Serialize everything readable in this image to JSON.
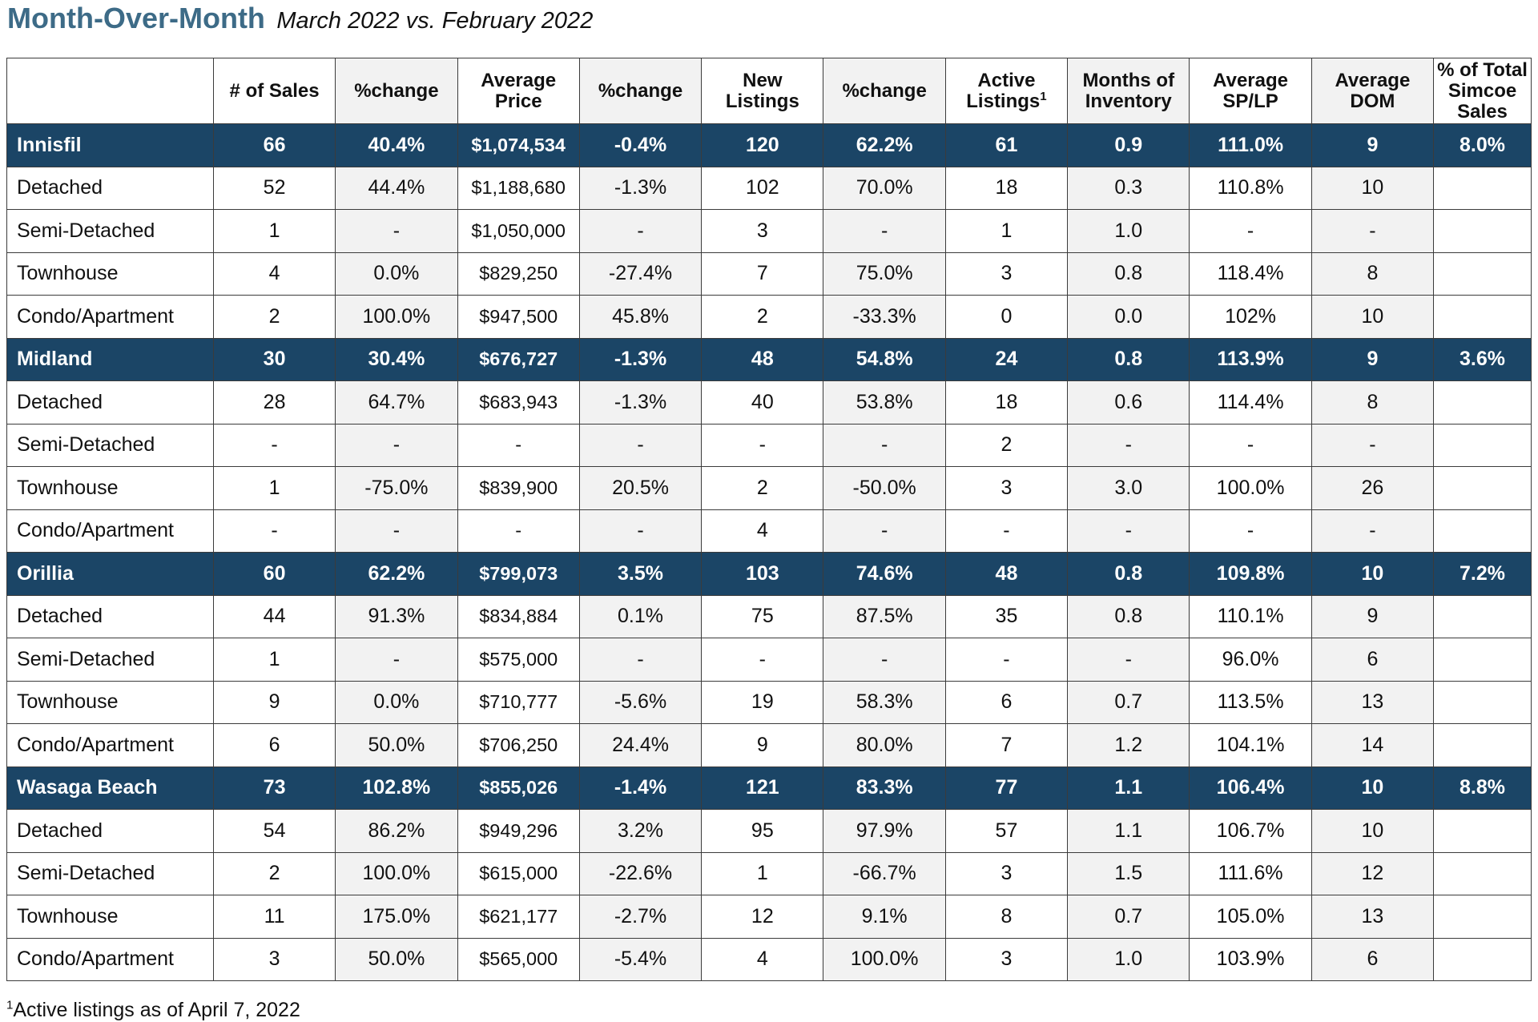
{
  "title": {
    "main": "Month-Over-Month",
    "subtitle": "March 2022 vs. February 2022"
  },
  "colors": {
    "title": "#3d6b87",
    "area_row_bg": "#1b4566",
    "area_row_text": "#ffffff",
    "shaded_column": "#f2f2f2",
    "border": "#3b3b3b"
  },
  "columns": {
    "sales": "# of Sales",
    "sales_change": "%change",
    "avg_price": "Average Price",
    "price_change": "%change",
    "new_listings": "New Listings",
    "new_change": "%change",
    "active_listings": "Active Listings",
    "active_sup": "1",
    "months_inventory": "Months of Inventory",
    "sp_lp": "Average SP/LP",
    "dom": "Average DOM",
    "pct_total": "% of Total Simcoe Sales"
  },
  "rows": [
    {
      "type": "area",
      "label": "Innisfil",
      "cells": [
        "66",
        "40.4%",
        "$1,074,534",
        "-0.4%",
        "120",
        "62.2%",
        "61",
        "0.9",
        "111.0%",
        "9",
        "8.0%"
      ]
    },
    {
      "type": "sub",
      "label": "Detached",
      "cells": [
        "52",
        "44.4%",
        "$1,188,680",
        "-1.3%",
        "102",
        "70.0%",
        "18",
        "0.3",
        "110.8%",
        "10",
        ""
      ]
    },
    {
      "type": "sub",
      "label": "Semi-Detached",
      "cells": [
        "1",
        "-",
        "$1,050,000",
        "-",
        "3",
        "-",
        "1",
        "1.0",
        "-",
        "-",
        ""
      ]
    },
    {
      "type": "sub",
      "label": "Townhouse",
      "cells": [
        "4",
        "0.0%",
        "$829,250",
        "-27.4%",
        "7",
        "75.0%",
        "3",
        "0.8",
        "118.4%",
        "8",
        ""
      ]
    },
    {
      "type": "sub",
      "label": "Condo/Apartment",
      "cells": [
        "2",
        "100.0%",
        "$947,500",
        "45.8%",
        "2",
        "-33.3%",
        "0",
        "0.0",
        "102%",
        "10",
        ""
      ]
    },
    {
      "type": "area",
      "label": "Midland",
      "cells": [
        "30",
        "30.4%",
        "$676,727",
        "-1.3%",
        "48",
        "54.8%",
        "24",
        "0.8",
        "113.9%",
        "9",
        "3.6%"
      ]
    },
    {
      "type": "sub",
      "label": "Detached",
      "cells": [
        "28",
        "64.7%",
        "$683,943",
        "-1.3%",
        "40",
        "53.8%",
        "18",
        "0.6",
        "114.4%",
        "8",
        ""
      ]
    },
    {
      "type": "sub",
      "label": "Semi-Detached",
      "cells": [
        "-",
        "-",
        "-",
        "-",
        "-",
        "-",
        "2",
        "-",
        "-",
        "-",
        ""
      ]
    },
    {
      "type": "sub",
      "label": "Townhouse",
      "cells": [
        "1",
        "-75.0%",
        "$839,900",
        "20.5%",
        "2",
        "-50.0%",
        "3",
        "3.0",
        "100.0%",
        "26",
        ""
      ]
    },
    {
      "type": "sub",
      "label": "Condo/Apartment",
      "cells": [
        "-",
        "-",
        "-",
        "-",
        "4",
        "-",
        "-",
        "-",
        "-",
        "-",
        ""
      ]
    },
    {
      "type": "area",
      "label": "Orillia",
      "cells": [
        "60",
        "62.2%",
        "$799,073",
        "3.5%",
        "103",
        "74.6%",
        "48",
        "0.8",
        "109.8%",
        "10",
        "7.2%"
      ]
    },
    {
      "type": "sub",
      "label": "Detached",
      "cells": [
        "44",
        "91.3%",
        "$834,884",
        "0.1%",
        "75",
        "87.5%",
        "35",
        "0.8",
        "110.1%",
        "9",
        ""
      ]
    },
    {
      "type": "sub",
      "label": "Semi-Detached",
      "cells": [
        "1",
        "-",
        "$575,000",
        "-",
        "-",
        "-",
        "-",
        "-",
        "96.0%",
        "6",
        ""
      ]
    },
    {
      "type": "sub",
      "label": "Townhouse",
      "cells": [
        "9",
        "0.0%",
        "$710,777",
        "-5.6%",
        "19",
        "58.3%",
        "6",
        "0.7",
        "113.5%",
        "13",
        ""
      ]
    },
    {
      "type": "sub",
      "label": "Condo/Apartment",
      "cells": [
        "6",
        "50.0%",
        "$706,250",
        "24.4%",
        "9",
        "80.0%",
        "7",
        "1.2",
        "104.1%",
        "14",
        ""
      ]
    },
    {
      "type": "area",
      "label": "Wasaga Beach",
      "cells": [
        "73",
        "102.8%",
        "$855,026",
        "-1.4%",
        "121",
        "83.3%",
        "77",
        "1.1",
        "106.4%",
        "10",
        "8.8%"
      ]
    },
    {
      "type": "sub",
      "label": "Detached",
      "cells": [
        "54",
        "86.2%",
        "$949,296",
        "3.2%",
        "95",
        "97.9%",
        "57",
        "1.1",
        "106.7%",
        "10",
        ""
      ]
    },
    {
      "type": "sub",
      "label": "Semi-Detached",
      "cells": [
        "2",
        "100.0%",
        "$615,000",
        "-22.6%",
        "1",
        "-66.7%",
        "3",
        "1.5",
        "111.6%",
        "12",
        ""
      ]
    },
    {
      "type": "sub",
      "label": "Townhouse",
      "cells": [
        "11",
        "175.0%",
        "$621,177",
        "-2.7%",
        "12",
        "9.1%",
        "8",
        "0.7",
        "105.0%",
        "13",
        ""
      ]
    },
    {
      "type": "sub",
      "label": "Condo/Apartment",
      "cells": [
        "3",
        "50.0%",
        "$565,000",
        "-5.4%",
        "4",
        "100.0%",
        "3",
        "1.0",
        "103.9%",
        "6",
        ""
      ]
    }
  ],
  "footnote": {
    "marker": "1",
    "text": "Active listings as of April 7, 2022"
  }
}
